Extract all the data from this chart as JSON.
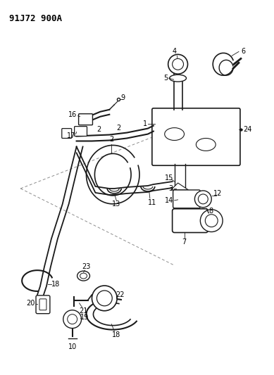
{
  "title": "91J72 900A",
  "bg_color": "#ffffff",
  "line_color": "#1a1a1a",
  "fig_width": 3.89,
  "fig_height": 5.33,
  "dpi": 100,
  "label_fontsize": 7
}
